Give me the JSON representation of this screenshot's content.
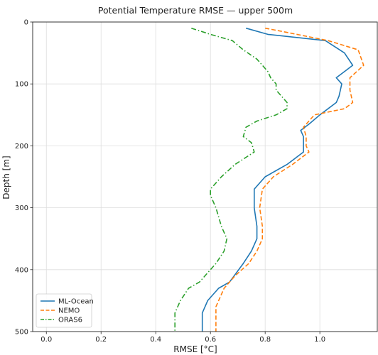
{
  "chart_data": {
    "type": "line",
    "title": "Potential Temperature RMSE — upper 500m",
    "xlabel": "RMSE  [°C]",
    "ylabel": "Depth  [m]",
    "xlim": [
      -0.05,
      1.21
    ],
    "ylim": [
      500,
      0
    ],
    "y_inverted": true,
    "grid": true,
    "legend_position": "lower-left",
    "xticks": [
      0.0,
      0.2,
      0.4,
      0.6,
      0.8,
      1.0
    ],
    "xtick_labels": [
      "0.0",
      "0.2",
      "0.4",
      "0.6",
      "0.8",
      "1.0"
    ],
    "yticks": [
      0,
      100,
      200,
      300,
      400,
      500
    ],
    "ytick_labels": [
      "0",
      "100",
      "200",
      "300",
      "400",
      "500"
    ],
    "series": [
      {
        "name": "ML-Ocean",
        "color": "#1f77b4",
        "style": "solid",
        "points": [
          [
            0.73,
            10
          ],
          [
            0.81,
            20
          ],
          [
            1.02,
            30
          ],
          [
            1.09,
            50
          ],
          [
            1.12,
            70
          ],
          [
            1.06,
            90
          ],
          [
            1.08,
            100
          ],
          [
            1.07,
            120
          ],
          [
            1.06,
            130
          ],
          [
            1.0,
            150
          ],
          [
            0.96,
            165
          ],
          [
            0.93,
            175
          ],
          [
            0.94,
            185
          ],
          [
            0.94,
            200
          ],
          [
            0.94,
            210
          ],
          [
            0.88,
            230
          ],
          [
            0.8,
            250
          ],
          [
            0.76,
            270
          ],
          [
            0.76,
            300
          ],
          [
            0.77,
            330
          ],
          [
            0.77,
            350
          ],
          [
            0.75,
            370
          ],
          [
            0.72,
            390
          ],
          [
            0.67,
            420
          ],
          [
            0.63,
            430
          ],
          [
            0.59,
            450
          ],
          [
            0.57,
            470
          ],
          [
            0.57,
            500
          ]
        ]
      },
      {
        "name": "NEMO",
        "color": "#ff7f0e",
        "style": "dashed",
        "points": [
          [
            0.8,
            10
          ],
          [
            0.86,
            15
          ],
          [
            1.03,
            30
          ],
          [
            1.14,
            45
          ],
          [
            1.16,
            70
          ],
          [
            1.11,
            90
          ],
          [
            1.11,
            110
          ],
          [
            1.12,
            130
          ],
          [
            1.09,
            140
          ],
          [
            0.98,
            150
          ],
          [
            0.94,
            170
          ],
          [
            0.95,
            185
          ],
          [
            0.95,
            200
          ],
          [
            0.96,
            210
          ],
          [
            0.9,
            230
          ],
          [
            0.83,
            250
          ],
          [
            0.79,
            270
          ],
          [
            0.78,
            300
          ],
          [
            0.79,
            330
          ],
          [
            0.79,
            350
          ],
          [
            0.77,
            370
          ],
          [
            0.74,
            390
          ],
          [
            0.69,
            410
          ],
          [
            0.65,
            430
          ],
          [
            0.62,
            460
          ],
          [
            0.62,
            500
          ]
        ]
      },
      {
        "name": "ORAS6",
        "color": "#2ca02c",
        "style": "dashdot",
        "points": [
          [
            0.53,
            10
          ],
          [
            0.6,
            20
          ],
          [
            0.68,
            30
          ],
          [
            0.72,
            45
          ],
          [
            0.77,
            60
          ],
          [
            0.79,
            70
          ],
          [
            0.81,
            80
          ],
          [
            0.82,
            90
          ],
          [
            0.84,
            100
          ],
          [
            0.84,
            110
          ],
          [
            0.86,
            120
          ],
          [
            0.88,
            130
          ],
          [
            0.88,
            140
          ],
          [
            0.84,
            150
          ],
          [
            0.77,
            160
          ],
          [
            0.73,
            170
          ],
          [
            0.72,
            185
          ],
          [
            0.75,
            195
          ],
          [
            0.76,
            210
          ],
          [
            0.69,
            230
          ],
          [
            0.64,
            250
          ],
          [
            0.6,
            270
          ],
          [
            0.6,
            280
          ],
          [
            0.62,
            300
          ],
          [
            0.64,
            330
          ],
          [
            0.66,
            350
          ],
          [
            0.65,
            370
          ],
          [
            0.62,
            390
          ],
          [
            0.56,
            420
          ],
          [
            0.52,
            430
          ],
          [
            0.49,
            450
          ],
          [
            0.47,
            470
          ],
          [
            0.47,
            500
          ]
        ]
      }
    ]
  }
}
